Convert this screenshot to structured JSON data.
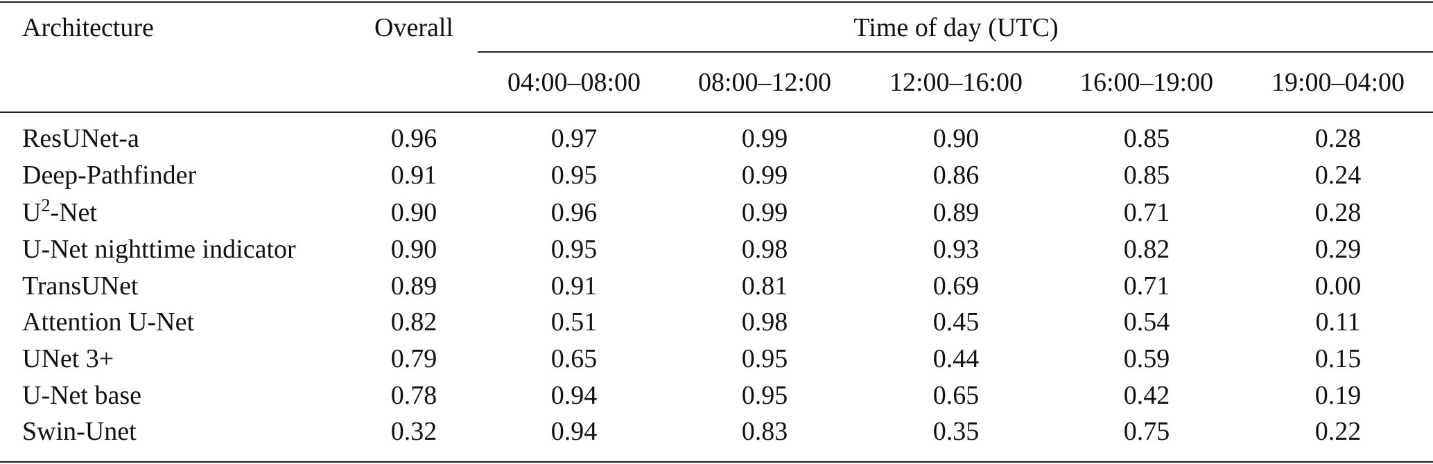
{
  "table": {
    "headers": {
      "architecture": "Architecture",
      "overall": "Overall",
      "group": "Time of day (UTC)",
      "periods": [
        "04:00–08:00",
        "08:00–12:00",
        "12:00–16:00",
        "16:00–19:00",
        "19:00–04:00"
      ]
    },
    "rows": [
      {
        "architecture": "ResUNet-a",
        "overall": "0.96",
        "periods": [
          "0.97",
          "0.99",
          "0.90",
          "0.85",
          "0.28"
        ]
      },
      {
        "architecture": "Deep-Pathfinder",
        "overall": "0.91",
        "periods": [
          "0.95",
          "0.99",
          "0.86",
          "0.85",
          "0.24"
        ]
      },
      {
        "architecture": {
          "base": "U",
          "sup": "2",
          "rest": "-Net"
        },
        "overall": "0.90",
        "periods": [
          "0.96",
          "0.99",
          "0.89",
          "0.71",
          "0.28"
        ]
      },
      {
        "architecture": "U-Net nighttime indicator",
        "overall": "0.90",
        "periods": [
          "0.95",
          "0.98",
          "0.93",
          "0.82",
          "0.29"
        ]
      },
      {
        "architecture": "TransUNet",
        "overall": "0.89",
        "periods": [
          "0.91",
          "0.81",
          "0.69",
          "0.71",
          "0.00"
        ]
      },
      {
        "architecture": "Attention U-Net",
        "overall": "0.82",
        "periods": [
          "0.51",
          "0.98",
          "0.45",
          "0.54",
          "0.11"
        ]
      },
      {
        "architecture": "UNet 3+",
        "overall": "0.79",
        "periods": [
          "0.65",
          "0.95",
          "0.44",
          "0.59",
          "0.15"
        ]
      },
      {
        "architecture": "U-Net base",
        "overall": "0.78",
        "periods": [
          "0.94",
          "0.95",
          "0.65",
          "0.42",
          "0.19"
        ]
      },
      {
        "architecture": "Swin-Unet",
        "overall": "0.32",
        "periods": [
          "0.94",
          "0.83",
          "0.35",
          "0.75",
          "0.22"
        ]
      }
    ]
  }
}
